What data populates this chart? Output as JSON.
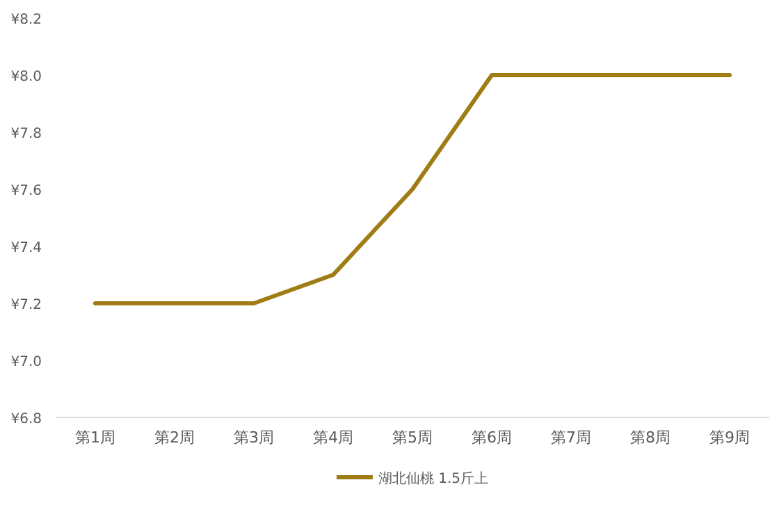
{
  "chart_data": {
    "type": "line",
    "categories": [
      "第1周",
      "第2周",
      "第3周",
      "第4周",
      "第5周",
      "第6周",
      "第7周",
      "第8周",
      "第9周"
    ],
    "series": [
      {
        "name": "湖北仙桃 1.5斤上",
        "color": "#a07c14",
        "values": [
          7.2,
          7.2,
          7.2,
          7.3,
          7.6,
          8.0,
          8.0,
          8.0,
          8.0
        ]
      }
    ],
    "ylim": [
      6.8,
      8.2
    ],
    "yticks": [
      {
        "value": 6.8,
        "label": "¥6.8"
      },
      {
        "value": 7.0,
        "label": "¥7.0"
      },
      {
        "value": 7.2,
        "label": "¥7.2"
      },
      {
        "value": 7.4,
        "label": "¥7.4"
      },
      {
        "value": 7.6,
        "label": "¥7.6"
      },
      {
        "value": 7.8,
        "label": "¥7.8"
      },
      {
        "value": 8.0,
        "label": "¥8.0"
      },
      {
        "value": 8.2,
        "label": "¥8.2"
      }
    ],
    "grid": false,
    "legend": "bottom",
    "marker": "none",
    "line_style": "solid"
  }
}
